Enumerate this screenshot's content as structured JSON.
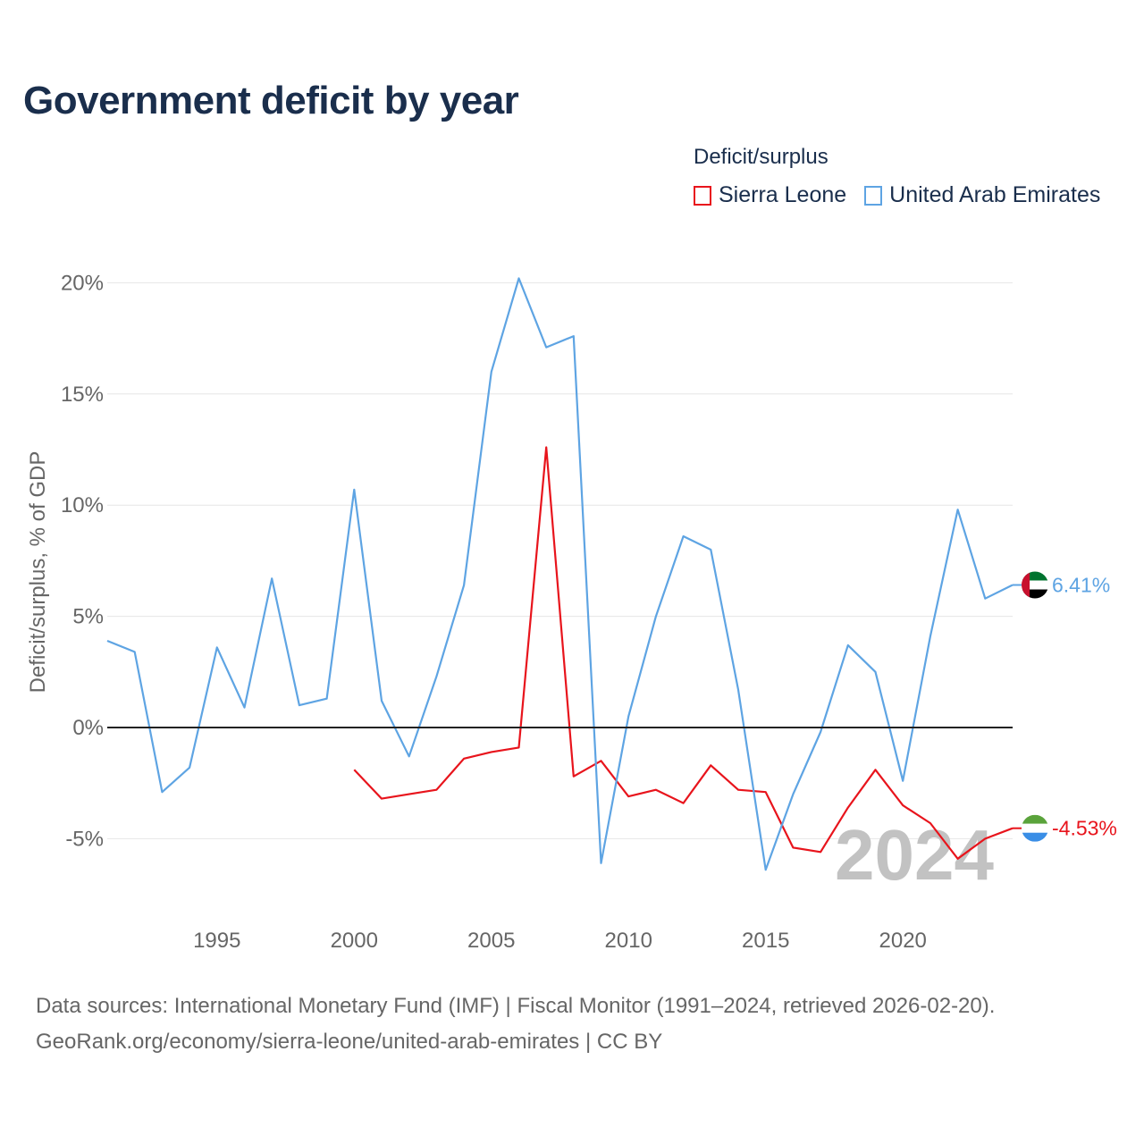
{
  "title": "Government deficit by year",
  "legend": {
    "title": "Deficit/surplus",
    "items": [
      {
        "label": "Sierra Leone",
        "color": "#e8141c"
      },
      {
        "label": "United Arab Emirates",
        "color": "#5ea4e3"
      }
    ]
  },
  "footer": {
    "line1": "Data sources: International Monetary Fund (IMF) | Fiscal Monitor (1991–2024, retrieved 2026-02-20).",
    "line2": "GeoRank.org/economy/sierra-leone/united-arab-emirates | CC BY"
  },
  "year_watermark": "2024",
  "chart_data": {
    "type": "line",
    "title": "Government deficit by year",
    "xlabel": "",
    "ylabel": "Deficit/surplus, % of GDP",
    "xlim": [
      1991,
      2024
    ],
    "ylim": [
      -8,
      21
    ],
    "yticks": [
      -5,
      0,
      5,
      10,
      15,
      20
    ],
    "ytick_labels": [
      "-5%",
      "0%",
      "5%",
      "10%",
      "15%",
      "20%"
    ],
    "xticks": [
      1995,
      2000,
      2005,
      2010,
      2015,
      2020
    ],
    "xtick_labels": [
      "1995",
      "2000",
      "2005",
      "2010",
      "2015",
      "2020"
    ],
    "grid": true,
    "series": [
      {
        "name": "Sierra Leone",
        "color": "#e8141c",
        "end_label": "-4.53%",
        "x": [
          2000,
          2001,
          2002,
          2003,
          2004,
          2005,
          2006,
          2007,
          2008,
          2009,
          2010,
          2011,
          2012,
          2013,
          2014,
          2015,
          2016,
          2017,
          2018,
          2019,
          2020,
          2021,
          2022,
          2023,
          2024
        ],
        "y": [
          -1.9,
          -3.2,
          -3.0,
          -2.8,
          -1.4,
          -1.1,
          -0.9,
          12.6,
          -2.2,
          -1.5,
          -3.1,
          -2.8,
          -3.4,
          -1.7,
          -2.8,
          -2.9,
          -5.4,
          -5.6,
          -3.6,
          -1.9,
          -3.5,
          -4.3,
          -5.9,
          -5.0,
          -4.53
        ]
      },
      {
        "name": "United Arab Emirates",
        "color": "#5ea4e3",
        "end_label": "6.41%",
        "x": [
          1991,
          1992,
          1993,
          1994,
          1995,
          1996,
          1997,
          1998,
          1999,
          2000,
          2001,
          2002,
          2003,
          2004,
          2005,
          2006,
          2007,
          2008,
          2009,
          2010,
          2011,
          2012,
          2013,
          2014,
          2015,
          2016,
          2017,
          2018,
          2019,
          2020,
          2021,
          2022,
          2023,
          2024
        ],
        "y": [
          3.9,
          3.4,
          -2.9,
          -1.8,
          3.6,
          0.9,
          6.7,
          1.0,
          1.3,
          10.7,
          1.2,
          -1.3,
          2.3,
          6.4,
          16.0,
          20.2,
          17.1,
          17.6,
          -6.1,
          0.5,
          5.0,
          8.6,
          8.0,
          1.7,
          -6.4,
          -3.0,
          -0.2,
          3.7,
          2.5,
          -2.4,
          4.1,
          9.8,
          5.8,
          6.41
        ]
      }
    ]
  }
}
